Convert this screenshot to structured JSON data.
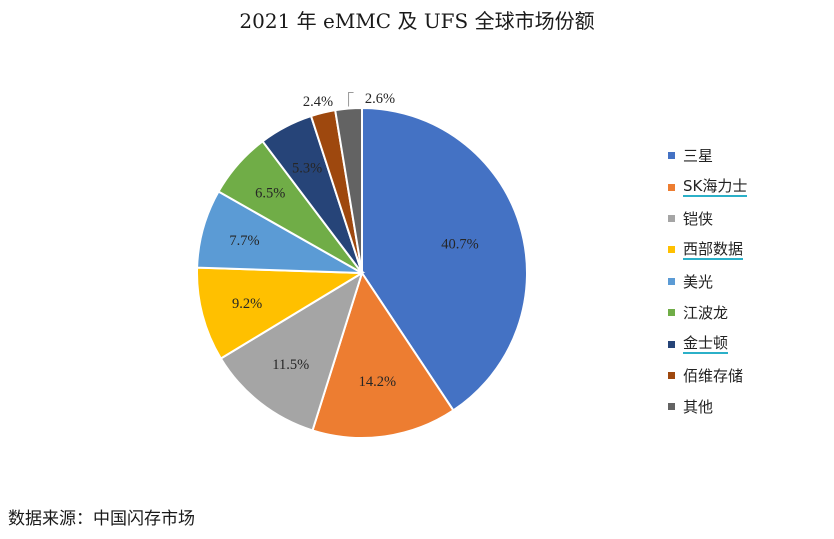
{
  "chart_data": {
    "type": "pie",
    "title": "2021 年 eMMC 及 UFS 全球市场份额",
    "categories": [
      "三星",
      "SK海力士",
      "铠侠",
      "西部数据",
      "美光",
      "江波龙",
      "金士顿",
      "佰维存储",
      "其他"
    ],
    "values": [
      40.7,
      14.2,
      11.5,
      9.2,
      7.7,
      6.5,
      5.3,
      2.4,
      2.6
    ],
    "value_labels": [
      "40.7%",
      "14.2%",
      "11.5%",
      "9.2%",
      "7.7%",
      "6.5%",
      "5.3%",
      "2.4%",
      "2.6%"
    ],
    "colors": [
      "#4472c4",
      "#ed7d31",
      "#a5a5a5",
      "#ffc000",
      "#5b9bd5",
      "#70ad47",
      "#264478",
      "#9e480e",
      "#636363"
    ],
    "start": "12 o'clock, clockwise",
    "legend_position": "right",
    "legend_underlined": [
      false,
      true,
      false,
      true,
      false,
      false,
      true,
      false,
      false
    ],
    "grid": false
  },
  "footer": {
    "source": "数据来源：中国闪存市场"
  }
}
